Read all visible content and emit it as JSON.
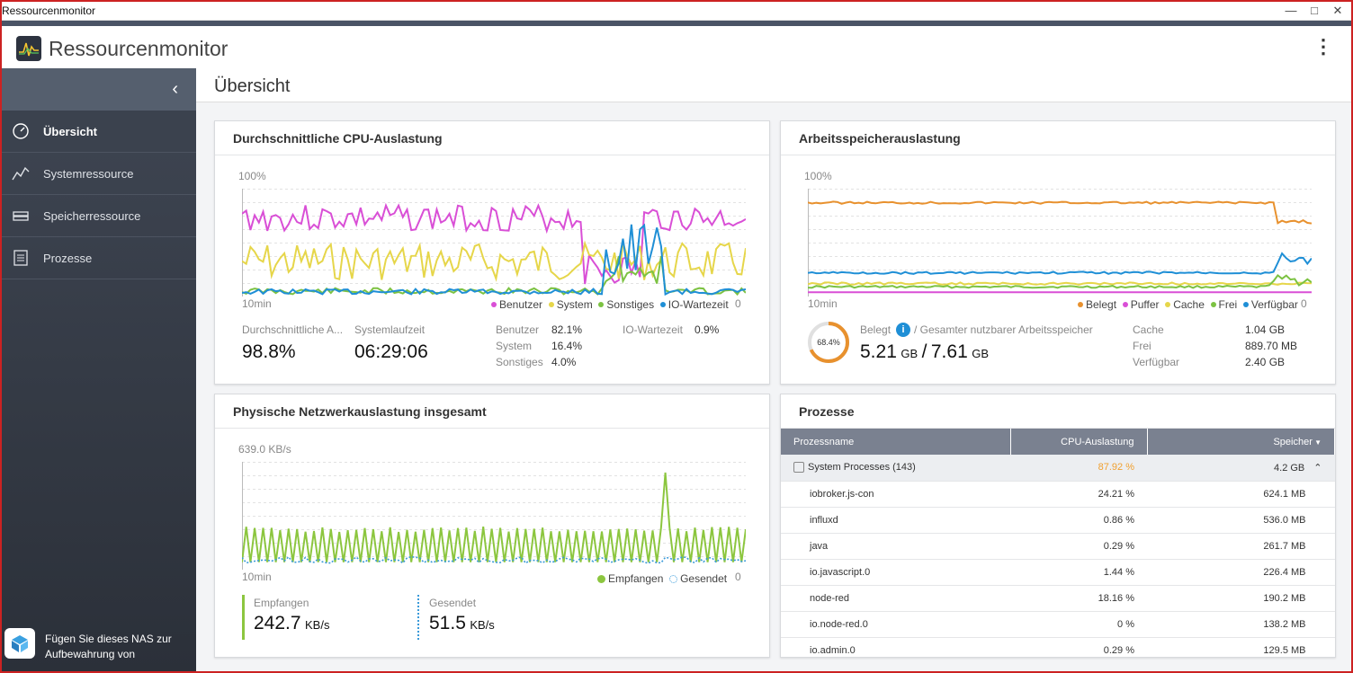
{
  "window": {
    "title": "Ressourcenmonitor"
  },
  "app": {
    "title": "Ressourcenmonitor"
  },
  "sidebar": {
    "items": [
      {
        "label": "Übersicht",
        "icon": "gauge-icon"
      },
      {
        "label": "Systemressource",
        "icon": "line-chart-icon"
      },
      {
        "label": "Speicherressource",
        "icon": "storage-icon"
      },
      {
        "label": "Prozesse",
        "icon": "list-icon"
      }
    ],
    "footer": "Fügen Sie dieses NAS zur Aufbewahrung von"
  },
  "page": {
    "title": "Übersicht"
  },
  "cpu": {
    "title": "Durchschnittliche CPU-Auslastung",
    "y_max": "100%",
    "x_left": "10min",
    "x_right": "0",
    "legend": [
      "Benutzer",
      "System",
      "Sonstiges",
      "IO-Wartezeit"
    ],
    "avg_label": "Durchschnittliche A...",
    "avg_value": "98.8%",
    "uptime_label": "Systemlaufzeit",
    "uptime_value": "06:29:06",
    "stats": [
      {
        "label": "Benutzer",
        "value": "82.1%"
      },
      {
        "label": "System",
        "value": "16.4%"
      },
      {
        "label": "Sonstiges",
        "value": "4.0%"
      }
    ],
    "io_label": "IO-Wartezeit",
    "io_value": "0.9%"
  },
  "mem": {
    "title": "Arbeitsspeicherauslastung",
    "y_max": "100%",
    "x_left": "10min",
    "x_right": "0",
    "legend": [
      "Belegt",
      "Puffer",
      "Cache",
      "Frei",
      "Verfügbar"
    ],
    "ring": "68.4%",
    "used_label": "Belegt",
    "info": "i",
    "total_label": "/ Gesamter nutzbarer Arbeitsspeicher",
    "used": "5.21",
    "total": "7.61",
    "unit": "GB",
    "slash": "/",
    "stats": [
      {
        "label": "Cache",
        "value": "1.04 GB"
      },
      {
        "label": "Frei",
        "value": "889.70 MB"
      },
      {
        "label": "Verfügbar",
        "value": "2.40 GB"
      }
    ]
  },
  "net": {
    "title": "Physische Netzwerkauslastung insgesamt",
    "y_max": "639.0 KB/s",
    "x_left": "10min",
    "x_right": "0",
    "legend": [
      "Empfangen",
      "Gesendet"
    ],
    "recv_label": "Empfangen",
    "recv_value": "242.7",
    "sent_label": "Gesendet",
    "sent_value": "51.5",
    "unit": "KB/s"
  },
  "proc": {
    "title": "Prozesse",
    "headers": [
      "Prozessname",
      "CPU-Auslastung",
      "Speicher"
    ],
    "group": {
      "name": "System Processes (143)",
      "cpu": "87.92 %",
      "mem": "4.2 GB"
    },
    "rows": [
      {
        "name": "iobroker.js-con",
        "cpu": "24.21 %",
        "mem": "624.1 MB"
      },
      {
        "name": "influxd",
        "cpu": "0.86 %",
        "mem": "536.0 MB"
      },
      {
        "name": "java",
        "cpu": "0.29 %",
        "mem": "261.7 MB"
      },
      {
        "name": "io.javascript.0",
        "cpu": "1.44 %",
        "mem": "226.4 MB"
      },
      {
        "name": "node-red",
        "cpu": "18.16 %",
        "mem": "190.2 MB"
      },
      {
        "name": "io.node-red.0",
        "cpu": "0 %",
        "mem": "138.2 MB"
      },
      {
        "name": "io.admin.0",
        "cpu": "0.29 %",
        "mem": "129.5 MB"
      }
    ]
  },
  "colors": {
    "benutzer": "#d94fd6",
    "system": "#e6d64a",
    "sonstiges": "#7cc242",
    "io": "#1f8fd6",
    "belegt": "#e8912e",
    "puffer": "#d94fd6",
    "cache": "#e6d64a",
    "frei": "#7cc242",
    "verfuegbar": "#1f8fd6",
    "empfangen": "#8cc63f",
    "gesendet": "#3a9ad9"
  }
}
